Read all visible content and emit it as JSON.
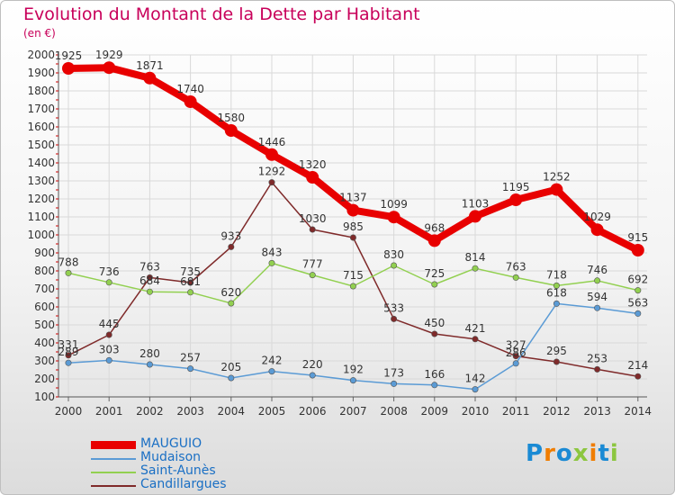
{
  "title": "Evolution du Montant de la Dette par Habitant",
  "unit": "(en €)",
  "logo": {
    "text": "Proxiti",
    "letters": [
      "P",
      "r",
      "o",
      "x",
      "i",
      "t",
      "i"
    ],
    "colors": [
      "#1a8ad4",
      "#f07d00",
      "#1a8ad4",
      "#8cc63f",
      "#f07d00",
      "#1a8ad4",
      "#8cc63f"
    ]
  },
  "chart_data": {
    "type": "line",
    "x": [
      2000,
      2001,
      2002,
      2003,
      2004,
      2005,
      2006,
      2007,
      2008,
      2009,
      2010,
      2011,
      2012,
      2013,
      2014
    ],
    "ylim": [
      100,
      2000
    ],
    "yticks": [
      100,
      200,
      300,
      400,
      500,
      600,
      700,
      800,
      900,
      1000,
      1100,
      1200,
      1300,
      1400,
      1500,
      1600,
      1700,
      1800,
      1900,
      2000
    ],
    "grid": true,
    "legend_position": "bottom-left",
    "series": [
      {
        "name": "MAUGUIO",
        "color": "#e80000",
        "width": 8,
        "marker": 7,
        "values": [
          1925,
          1929,
          1871,
          1740,
          1580,
          1446,
          1320,
          1137,
          1099,
          968,
          1103,
          1195,
          1252,
          1029,
          915
        ]
      },
      {
        "name": "Mudaison",
        "color": "#5b9bd5",
        "width": 1.5,
        "marker": 3.2,
        "values": [
          289,
          303,
          280,
          257,
          205,
          242,
          220,
          192,
          173,
          166,
          142,
          286,
          618,
          594,
          563
        ]
      },
      {
        "name": "Saint-Aunès",
        "color": "#92d050",
        "width": 1.5,
        "marker": 3.2,
        "values": [
          788,
          736,
          684,
          681,
          620,
          843,
          777,
          715,
          830,
          725,
          814,
          763,
          718,
          746,
          692
        ]
      },
      {
        "name": "Candillargues",
        "color": "#7f2a2a",
        "width": 1.5,
        "marker": 3.2,
        "values": [
          331,
          445,
          763,
          735,
          933,
          1292,
          1030,
          985,
          533,
          450,
          421,
          327,
          295,
          253,
          214
        ]
      }
    ]
  }
}
